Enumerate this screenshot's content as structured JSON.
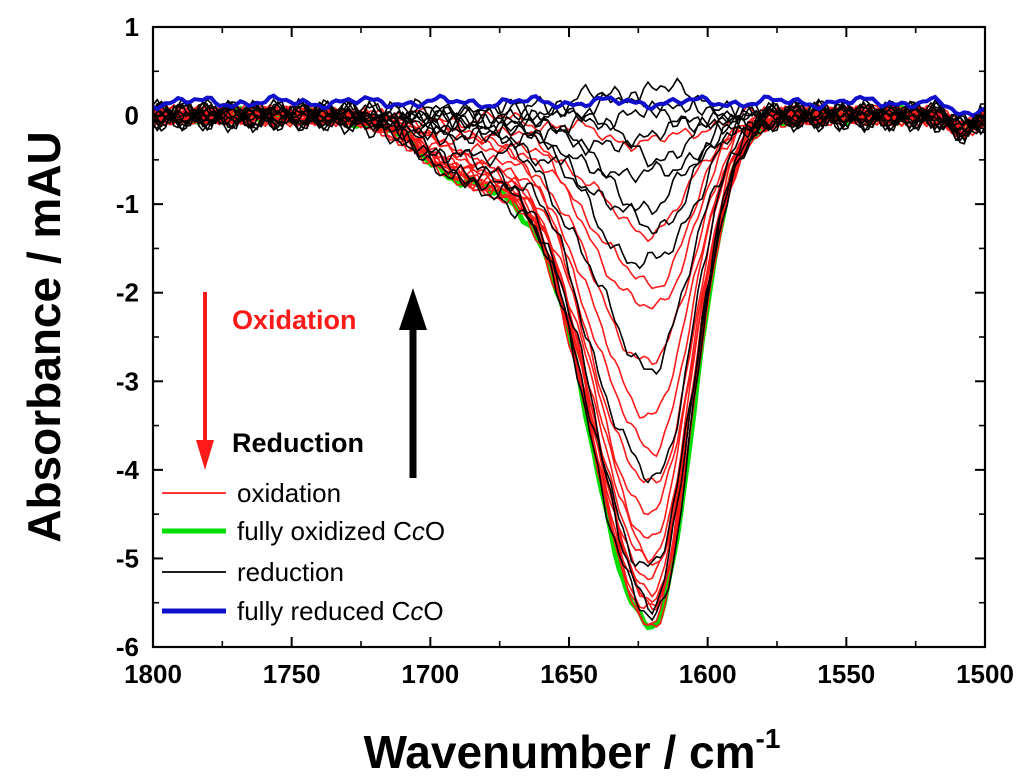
{
  "chart_data": {
    "type": "line",
    "title": "",
    "xlabel": "Wavenumber / cm",
    "xlabel_sup": "-1",
    "ylabel": "Absorbance / mAU",
    "xlim": [
      1800,
      1500
    ],
    "ylim": [
      -6,
      1
    ],
    "x_ticks": [
      1800,
      1750,
      1700,
      1650,
      1600,
      1550,
      1500
    ],
    "y_ticks": [
      1,
      0,
      -1,
      -2,
      -3,
      -4,
      -5,
      -6
    ],
    "x_tick_labels": [
      "1800",
      "1750",
      "1700",
      "1650",
      "1600",
      "1550",
      "1500"
    ],
    "y_tick_labels": [
      "1",
      "0",
      "-1",
      "-2",
      "-3",
      "-4",
      "-5",
      "-6"
    ],
    "band_center": 1620,
    "colors": {
      "oxidation": "#ff1a1a",
      "fully_oxidized": "#00dd00",
      "reduction": "#000000",
      "fully_reduced": "#1010cc"
    },
    "series": [
      {
        "name": "fully oxidized CcO",
        "role": "fully_oxidized",
        "minimum": -5.8
      },
      {
        "name": "oxidation",
        "role": "oxidation",
        "minima": [
          -0.3,
          -1.3,
          -1.9,
          -2.2,
          -2.8,
          -3.35,
          -3.75,
          -4.2,
          -4.5,
          -4.75,
          -4.95,
          -5.1,
          -5.25,
          -5.35,
          -5.45,
          -5.55,
          -5.62,
          -5.7,
          -5.75
        ]
      },
      {
        "name": "reduction",
        "role": "reduction",
        "minima": [
          0.3,
          0.15,
          0.0,
          -0.2,
          -0.45,
          -0.7,
          -1.0,
          -1.25,
          -1.7,
          -2.8,
          -4.1,
          -5.15,
          -5.45,
          -5.7
        ]
      },
      {
        "name": "fully reduced CcO",
        "role": "fully_reduced",
        "minimum": 0.15
      }
    ],
    "annotations": {
      "oxidation_arrow": "Oxidation",
      "reduction_arrow": "Reduction"
    },
    "legend": {
      "position": "bottom-left",
      "entries": [
        {
          "label": "oxidation",
          "color": "#ff1a1a"
        },
        {
          "label_pre": "fully oxidized C",
          "label_italic": "c",
          "label_post": "O",
          "color": "#00dd00"
        },
        {
          "label": "reduction",
          "color": "#000000"
        },
        {
          "label_pre": "fully reduced C",
          "label_italic": "c",
          "label_post": "O",
          "color": "#1010cc"
        }
      ]
    }
  }
}
